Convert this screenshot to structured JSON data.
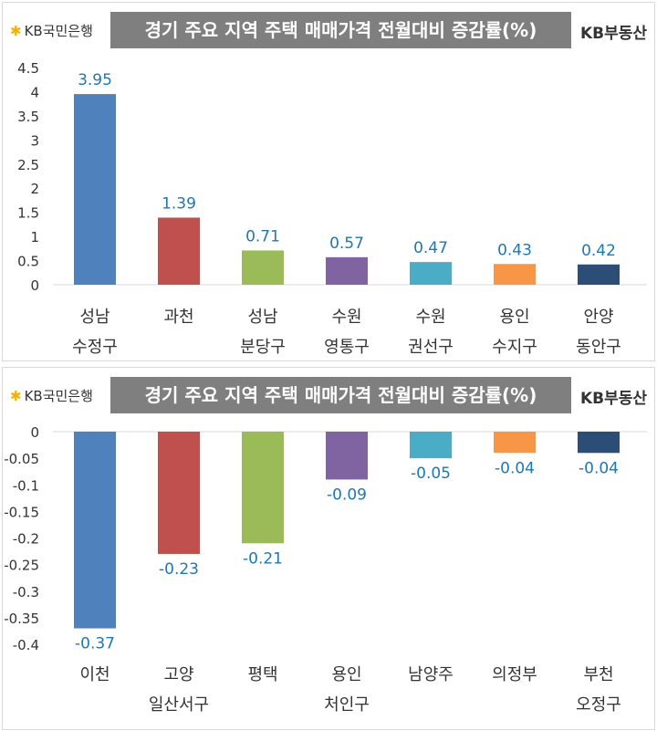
{
  "header": {
    "bank_logo": "KB국민은행",
    "brand_logo": "KB부동산"
  },
  "colors": [
    "#4f81bd",
    "#c0504d",
    "#9bbb59",
    "#8064a2",
    "#4bacc6",
    "#f79646",
    "#2c4d75"
  ],
  "label_color": "#1f77b4",
  "chart_data": [
    {
      "type": "bar",
      "title": "경기 주요 지역 주택 매매가격 전월대비 증감률(%)",
      "categories": [
        [
          "성남",
          "수정구"
        ],
        [
          "과천",
          ""
        ],
        [
          "성남",
          "분당구"
        ],
        [
          "수원",
          "영통구"
        ],
        [
          "수원",
          "권선구"
        ],
        [
          "용인",
          "수지구"
        ],
        [
          "안양",
          "동안구"
        ]
      ],
      "values": [
        3.95,
        1.39,
        0.71,
        0.57,
        0.47,
        0.43,
        0.42
      ],
      "value_labels": [
        "3.95",
        "1.39",
        "0.71",
        "0.57",
        "0.47",
        "0.43",
        "0.42"
      ],
      "yticks": [
        "0",
        "0.5",
        "1",
        "1.5",
        "2",
        "2.5",
        "3",
        "3.5",
        "4",
        "4.5"
      ],
      "ylim": [
        0,
        4.5
      ],
      "grid": false,
      "legend": "none"
    },
    {
      "type": "bar",
      "title": "경기 주요 지역 주택 매매가격 전월대비 증감률(%)",
      "categories": [
        [
          "이천",
          ""
        ],
        [
          "고양",
          "일산서구"
        ],
        [
          "평택",
          ""
        ],
        [
          "용인",
          "처인구"
        ],
        [
          "남양주",
          ""
        ],
        [
          "의정부",
          ""
        ],
        [
          "부천",
          "오정구"
        ]
      ],
      "values": [
        -0.37,
        -0.23,
        -0.21,
        -0.09,
        -0.05,
        -0.04,
        -0.04
      ],
      "value_labels": [
        "-0.37",
        "-0.23",
        "-0.21",
        "-0.09",
        "-0.05",
        "-0.04",
        "-0.04"
      ],
      "yticks": [
        "0",
        "-0.05",
        "-0.1",
        "-0.15",
        "-0.2",
        "-0.25",
        "-0.3",
        "-0.35",
        "-0.4"
      ],
      "ylim": [
        -0.4,
        0
      ],
      "grid": false,
      "legend": "none"
    }
  ]
}
